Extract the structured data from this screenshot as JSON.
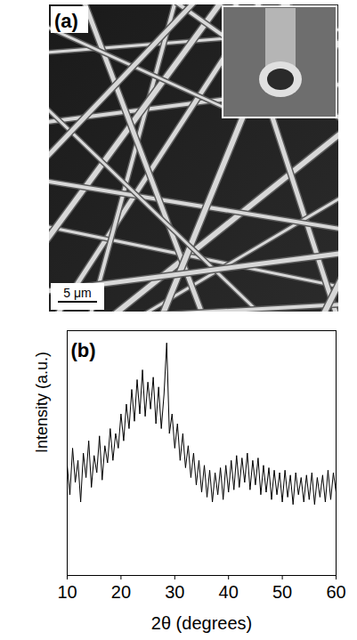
{
  "image_panel": {
    "label": "(a)",
    "scale_bar": "5 μm"
  },
  "chart_data": {
    "type": "line",
    "title": "(b)",
    "x_label": "2θ (degrees)",
    "y_label": "Intensity (a.u.)",
    "x": [
      10,
      10.5,
      11,
      11.5,
      12,
      12.5,
      13,
      13.5,
      14,
      14.5,
      15,
      15.5,
      16,
      16.5,
      17,
      17.5,
      18,
      18.5,
      19,
      19.5,
      20,
      20.5,
      21,
      21.5,
      22,
      22.5,
      23,
      23.5,
      24,
      24.5,
      25,
      25.5,
      26,
      26.5,
      27,
      27.5,
      28,
      28.5,
      29,
      29.5,
      30,
      30.5,
      31,
      31.5,
      32,
      32.5,
      33,
      33.5,
      34,
      34.5,
      35,
      35.5,
      36,
      36.5,
      37,
      37.5,
      38,
      38.5,
      39,
      39.5,
      40,
      40.5,
      41,
      41.5,
      42,
      42.5,
      43,
      43.5,
      44,
      44.5,
      45,
      45.5,
      46,
      46.5,
      47,
      47.5,
      48,
      48.5,
      49,
      49.5,
      50,
      50.5,
      51,
      51.5,
      52,
      52.5,
      53,
      53.5,
      54,
      54.5,
      55,
      55.5,
      56,
      56.5,
      57,
      57.5,
      58,
      58.5,
      59,
      59.5,
      60
    ],
    "values": [
      45,
      33,
      52,
      38,
      47,
      30,
      50,
      40,
      55,
      36,
      49,
      42,
      57,
      39,
      53,
      46,
      60,
      47,
      58,
      52,
      66,
      55,
      70,
      60,
      76,
      63,
      80,
      66,
      84,
      65,
      79,
      68,
      81,
      62,
      77,
      60,
      74,
      95,
      58,
      66,
      52,
      62,
      47,
      58,
      44,
      53,
      40,
      50,
      37,
      47,
      34,
      45,
      32,
      43,
      30,
      42,
      33,
      44,
      31,
      45,
      34,
      47,
      35,
      49,
      36,
      48,
      38,
      50,
      35,
      47,
      37,
      48,
      33,
      45,
      34,
      44,
      31,
      43,
      33,
      42,
      30,
      43,
      32,
      41,
      29,
      42,
      33,
      40,
      30,
      41,
      31,
      42,
      29,
      40,
      32,
      41,
      30,
      43,
      31,
      42,
      34
    ],
    "color": "#000000",
    "xlim": [
      10,
      60
    ],
    "xticks": [
      10,
      20,
      30,
      40,
      50,
      60
    ],
    "ylim": [
      0,
      100
    ],
    "tick_labels": "x",
    "grid": false
  }
}
